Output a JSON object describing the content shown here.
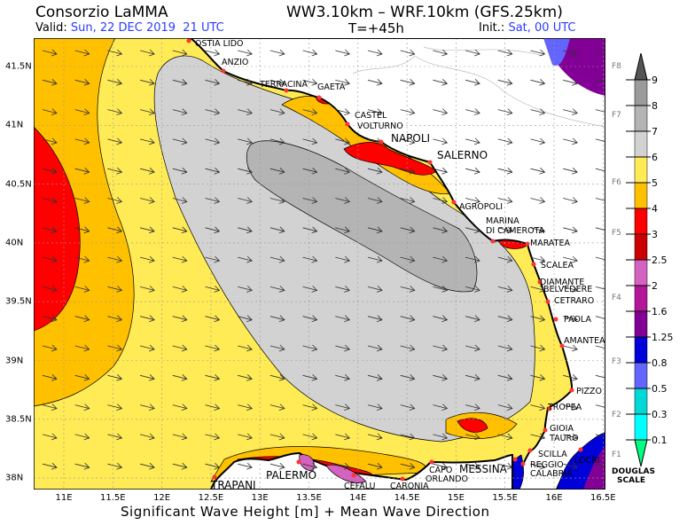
{
  "header": {
    "title": "Consorzio LaMMA",
    "model": "WW3.10km – WRF.10km (GFS.25km)",
    "valid_label": "Valid:",
    "valid_value": "Sun, 22 DEC 2019  21 UTC",
    "timestep": "T=+45h",
    "init_label": "Init.:",
    "init_value": "Sat, 00 UTC"
  },
  "axes": {
    "x_ticks": [
      "11E",
      "11.5E",
      "12E",
      "12.5E",
      "13E",
      "13.5E",
      "14E",
      "14.5E",
      "15E",
      "15.5E",
      "16E",
      "16.5E"
    ],
    "y_ticks": [
      "41.5N",
      "41N",
      "40.5N",
      "40N",
      "39.5N",
      "39N",
      "38.5N",
      "38N"
    ],
    "xlabel": "Significant Wave Height [m] + Mean Wave Direction"
  },
  "cities": [
    "OSTIA LIDO",
    "ANZIO",
    "TERRACINA",
    "GAETA",
    "CASTEL",
    "VOLTURNO",
    "NAPOLI",
    "SALERNO",
    "AGROPOLI",
    "MARINA",
    "DI CAMEROTA",
    "MARATEA",
    "SCALEA",
    "DIAMANTE",
    "BELVEDERE",
    "CETRARO",
    "PAOLA",
    "AMANTEA",
    "PIZZO",
    "TROPEA",
    "GIOIA",
    "TAURO",
    "LOCRI",
    "SCILLA",
    "REGGIO",
    "CALABRIA",
    "MESSINA",
    "CAPO",
    "ORLANDO",
    "CARONIA",
    "CEFALU",
    "PALERMO",
    "TRAPANI"
  ],
  "legend": {
    "values": [
      "9",
      "8",
      "7",
      "6",
      "5",
      "4",
      "3",
      "2.5",
      "2",
      "1.6",
      "1.25",
      "0.8",
      "0.5",
      "0.3",
      "0.1"
    ],
    "colors": [
      "#9b9b9b",
      "#b4b4b4",
      "#d2d2d2",
      "#ffeb55",
      "#ffc000",
      "#ff0000",
      "#cc0000",
      "#d462c0",
      "#b4169a",
      "#820096",
      "#0000d8",
      "#6464ff",
      "#00d8d8",
      "#00ffff"
    ],
    "top_color": "#555555",
    "bottom_color": "#00ff80",
    "force": [
      "F8",
      "F7",
      "F6",
      "F5",
      "F4",
      "F3",
      "F2",
      "F1"
    ],
    "scale_label_1": "DOUGLAS",
    "scale_label_2": "SCALE"
  }
}
